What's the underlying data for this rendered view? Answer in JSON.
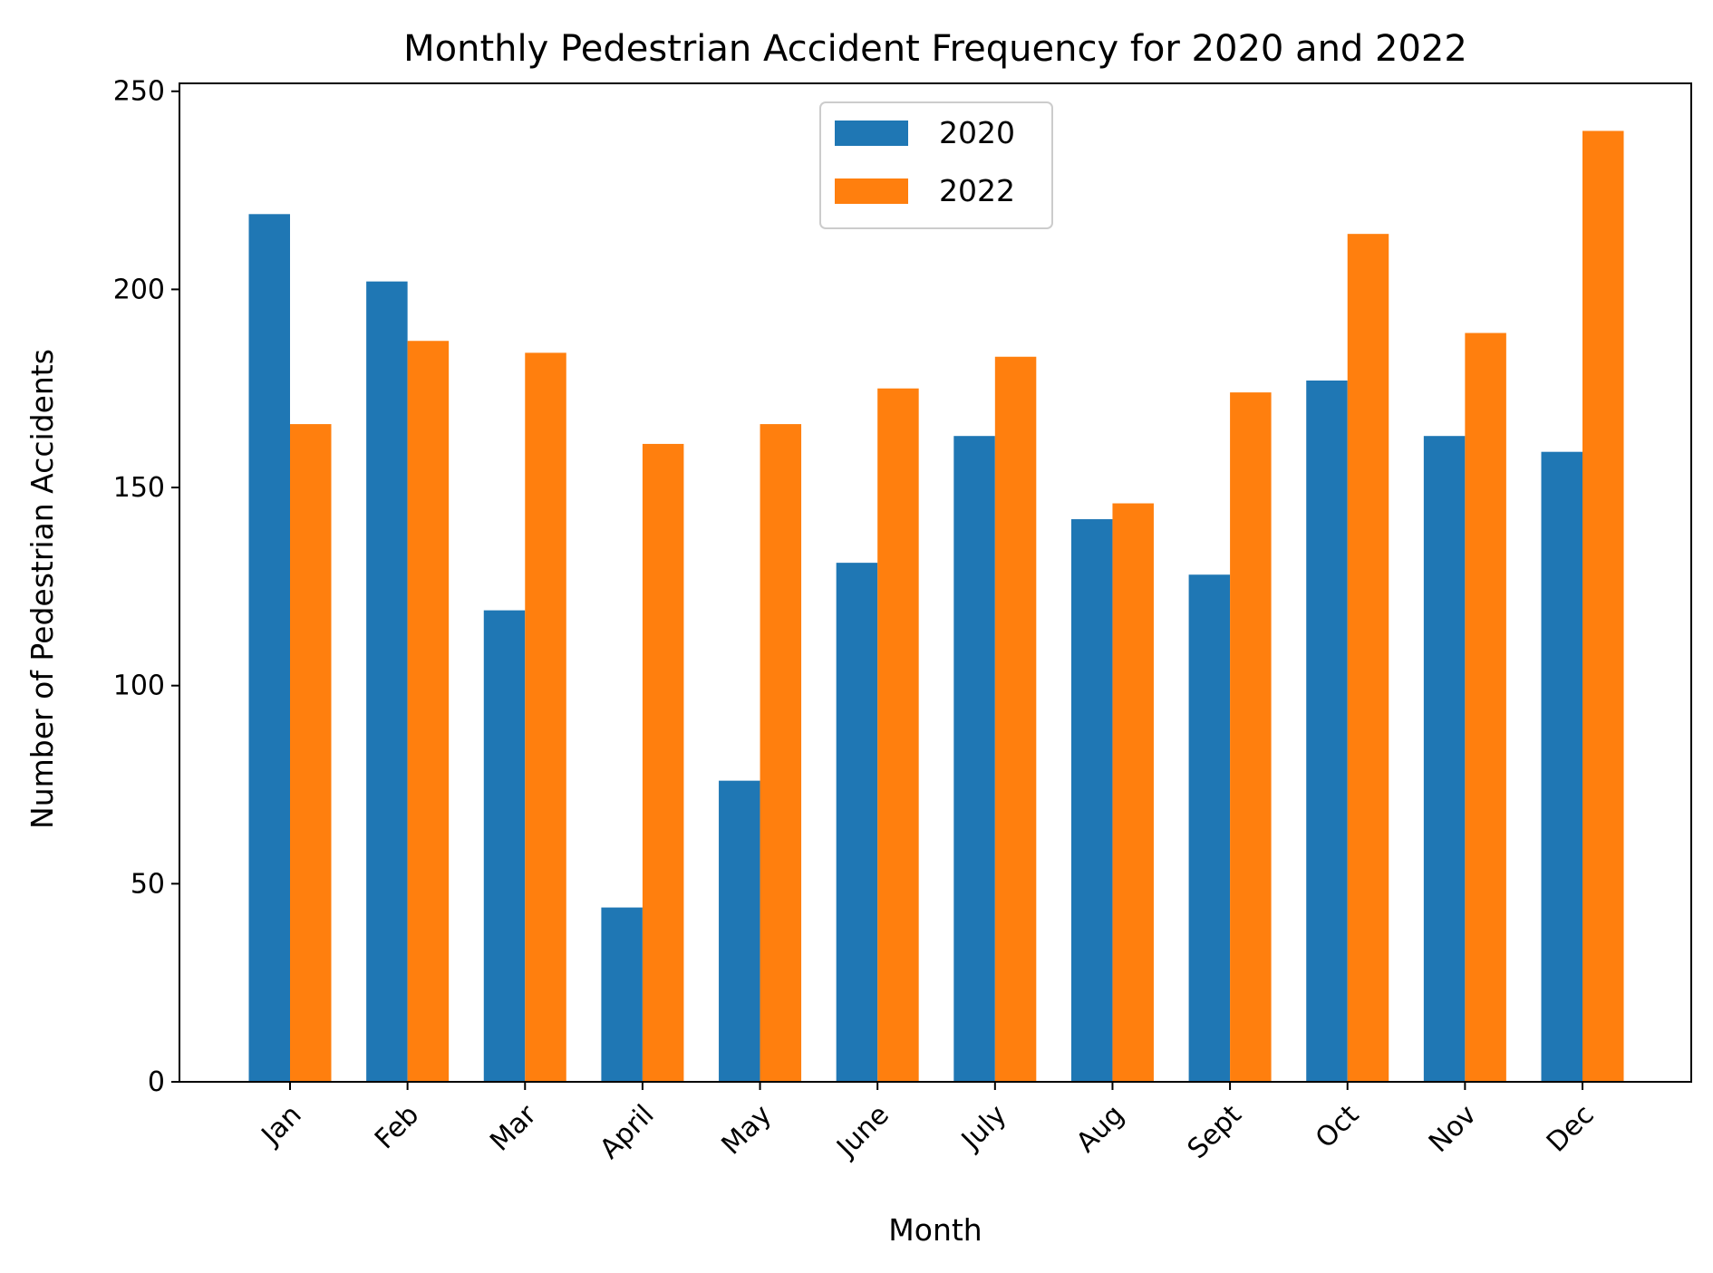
{
  "chart_data": {
    "type": "bar",
    "title": "Monthly Pedestrian Accident Frequency for 2020 and 2022",
    "xlabel": "Month",
    "ylabel": "Number of Pedestrian Accidents",
    "categories": [
      "Jan",
      "Feb",
      "Mar",
      "April",
      "May",
      "June",
      "July",
      "Aug",
      "Sept",
      "Oct",
      "Nov",
      "Dec"
    ],
    "series": [
      {
        "name": "2020",
        "color": "#1f77b4",
        "values": [
          219,
          202,
          119,
          44,
          76,
          131,
          163,
          142,
          128,
          177,
          163,
          159
        ]
      },
      {
        "name": "2022",
        "color": "#ff7f0e",
        "values": [
          166,
          187,
          184,
          161,
          166,
          175,
          183,
          146,
          174,
          214,
          189,
          240
        ]
      }
    ],
    "ylim": [
      0,
      252
    ],
    "yticks": [
      0,
      50,
      100,
      150,
      200,
      250
    ],
    "xtick_rotation_deg": 45,
    "grid": false,
    "legend": "upper center"
  }
}
